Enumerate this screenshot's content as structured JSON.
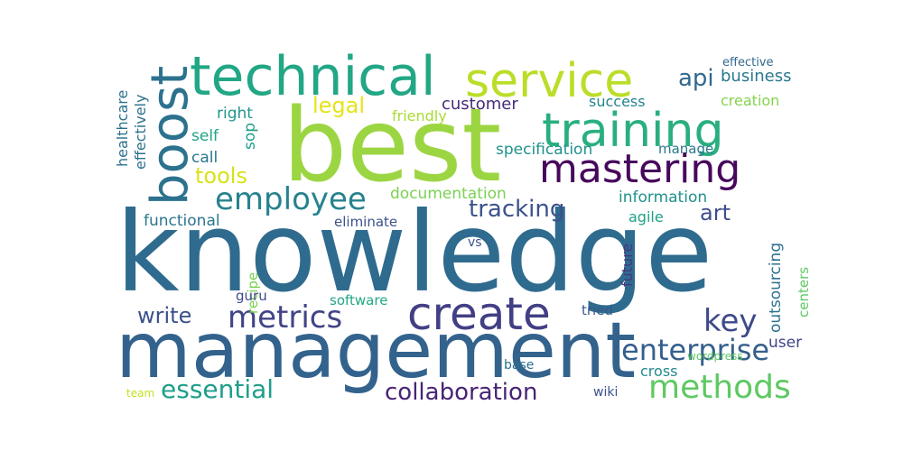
{
  "word_cloud": {
    "words": [
      {
        "text": "knowledge",
        "color": "#2f6b8e"
      },
      {
        "text": "management",
        "color": "#33638d"
      },
      {
        "text": "best",
        "color": "#9cd542"
      },
      {
        "text": "technical",
        "color": "#22a785"
      },
      {
        "text": "service",
        "color": "#bade28"
      },
      {
        "text": "training",
        "color": "#29af7f"
      },
      {
        "text": "boost",
        "color": "#2c728e"
      },
      {
        "text": "mastering",
        "color": "#46085c"
      },
      {
        "text": "create",
        "color": "#423f85"
      },
      {
        "text": "employee",
        "color": "#26828e"
      },
      {
        "text": "metrics",
        "color": "#414487"
      },
      {
        "text": "key",
        "color": "#3e4a89"
      },
      {
        "text": "methods",
        "color": "#5ec962"
      },
      {
        "text": "enterprise",
        "color": "#355f8d"
      },
      {
        "text": "essential",
        "color": "#1f9e89"
      },
      {
        "text": "collaboration",
        "color": "#482475"
      },
      {
        "text": "tracking",
        "color": "#3b528b"
      },
      {
        "text": "tools",
        "color": "#d8e219"
      },
      {
        "text": "legal",
        "color": "#e5e419"
      },
      {
        "text": "api",
        "color": "#31688e"
      },
      {
        "text": "art",
        "color": "#3e4c8a"
      },
      {
        "text": "write",
        "color": "#3b518b"
      },
      {
        "text": "business",
        "color": "#2a788e"
      },
      {
        "text": "customer",
        "color": "#472c7a"
      },
      {
        "text": "success",
        "color": "#25848e"
      },
      {
        "text": "friendly",
        "color": "#a8db34"
      },
      {
        "text": "right",
        "color": "#1f988b"
      },
      {
        "text": "self",
        "color": "#20a386"
      },
      {
        "text": "call",
        "color": "#2a768e"
      },
      {
        "text": "sop",
        "color": "#1f9e89"
      },
      {
        "text": "healthcare",
        "color": "#2d708e"
      },
      {
        "text": "effectively",
        "color": "#2c718e"
      },
      {
        "text": "functional",
        "color": "#2b758e"
      },
      {
        "text": "eliminate",
        "color": "#3b528b"
      },
      {
        "text": "specification",
        "color": "#21918c"
      },
      {
        "text": "manage",
        "color": "#2a788e"
      },
      {
        "text": "documentation",
        "color": "#7ad151"
      },
      {
        "text": "information",
        "color": "#21918c"
      },
      {
        "text": "agile",
        "color": "#1fa088"
      },
      {
        "text": "effective",
        "color": "#31688e"
      },
      {
        "text": "creation",
        "color": "#84d44b"
      },
      {
        "text": "vs",
        "color": "#3b528b"
      },
      {
        "text": "recipe",
        "color": "#7ad151"
      },
      {
        "text": "guru",
        "color": "#3e4a89"
      },
      {
        "text": "software",
        "color": "#22a785"
      },
      {
        "text": "tried",
        "color": "#38588c"
      },
      {
        "text": "future",
        "color": "#453781"
      },
      {
        "text": "outsourcing",
        "color": "#2d708e"
      },
      {
        "text": "centers",
        "color": "#5ec962"
      },
      {
        "text": "user",
        "color": "#414487"
      },
      {
        "text": "wordpress",
        "color": "#5ec962"
      },
      {
        "text": "cross",
        "color": "#23898e"
      },
      {
        "text": "base",
        "color": "#2d708e"
      },
      {
        "text": "wiki",
        "color": "#3b528b"
      },
      {
        "text": "team",
        "color": "#c2df23"
      }
    ]
  }
}
